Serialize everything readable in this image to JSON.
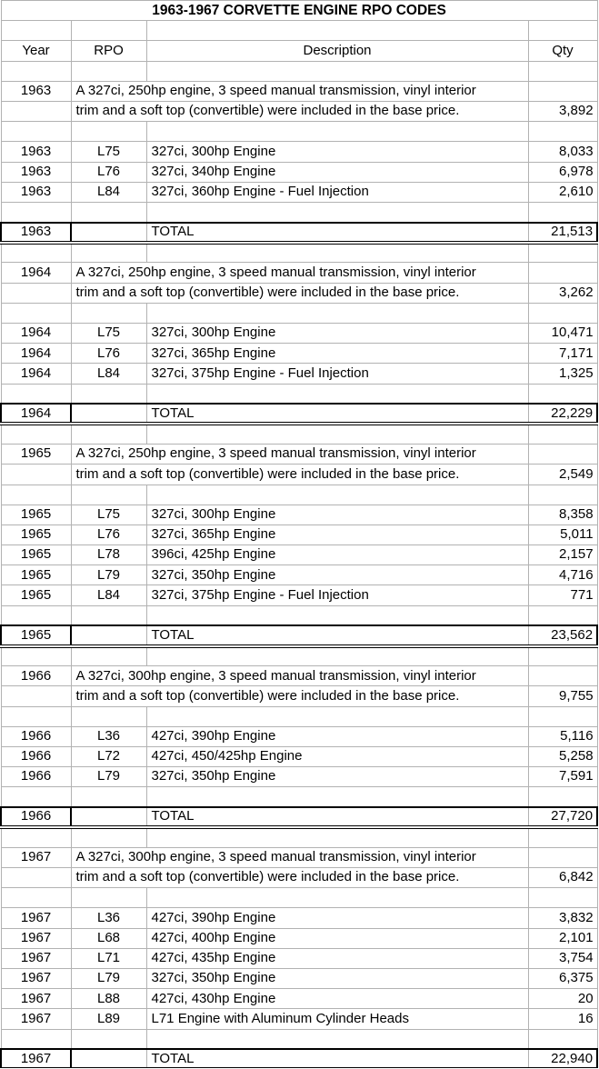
{
  "title": "1963-1967 CORVETTE ENGINE RPO CODES",
  "columns": [
    "Year",
    "RPO",
    "Description",
    "Qty"
  ],
  "colors": {
    "gridline": "#b2b2b2",
    "emphasis_border": "#000000",
    "text": "#000000",
    "background": "#ffffff"
  },
  "sections": [
    {
      "year": "1963",
      "note_line1": "A 327ci, 250hp engine, 3 speed manual transmission, vinyl interior",
      "note_line2": "trim and a soft top (convertible) were included in the base price.",
      "note_qty": "3,892",
      "rows": [
        {
          "year": "1963",
          "rpo": "L75",
          "description": "327ci, 300hp Engine",
          "qty": "8,033"
        },
        {
          "year": "1963",
          "rpo": "L76",
          "description": "327ci, 340hp Engine",
          "qty": "6,978"
        },
        {
          "year": "1963",
          "rpo": "L84",
          "description": "327ci, 360hp Engine - Fuel Injection",
          "qty": "2,610"
        }
      ],
      "total_label": "TOTAL",
      "total_qty": "21,513"
    },
    {
      "year": "1964",
      "note_line1": "A 327ci, 250hp engine, 3 speed manual transmission, vinyl interior",
      "note_line2": "trim and a soft top (convertible) were included in the base price.",
      "note_qty": "3,262",
      "rows": [
        {
          "year": "1964",
          "rpo": "L75",
          "description": "327ci, 300hp Engine",
          "qty": "10,471"
        },
        {
          "year": "1964",
          "rpo": "L76",
          "description": "327ci, 365hp Engine",
          "qty": "7,171"
        },
        {
          "year": "1964",
          "rpo": "L84",
          "description": "327ci, 375hp Engine - Fuel Injection",
          "qty": "1,325"
        }
      ],
      "total_label": "TOTAL",
      "total_qty": "22,229"
    },
    {
      "year": "1965",
      "note_line1": "A 327ci, 250hp engine, 3 speed manual transmission, vinyl interior",
      "note_line2": "trim and a soft top (convertible) were included in the base price.",
      "note_qty": "2,549",
      "rows": [
        {
          "year": "1965",
          "rpo": "L75",
          "description": "327ci, 300hp Engine",
          "qty": "8,358"
        },
        {
          "year": "1965",
          "rpo": "L76",
          "description": "327ci, 365hp Engine",
          "qty": "5,011"
        },
        {
          "year": "1965",
          "rpo": "L78",
          "description": "396ci, 425hp Engine",
          "qty": "2,157"
        },
        {
          "year": "1965",
          "rpo": "L79",
          "description": "327ci, 350hp Engine",
          "qty": "4,716"
        },
        {
          "year": "1965",
          "rpo": "L84",
          "description": "327ci, 375hp Engine - Fuel Injection",
          "qty": "771"
        }
      ],
      "total_label": "TOTAL",
      "total_qty": "23,562"
    },
    {
      "year": "1966",
      "note_line1": "A 327ci, 300hp engine, 3 speed manual transmission, vinyl interior",
      "note_line2": "trim and a soft top (convertible) were included in the base price.",
      "note_qty": "9,755",
      "rows": [
        {
          "year": "1966",
          "rpo": "L36",
          "description": "427ci, 390hp Engine",
          "qty": "5,116"
        },
        {
          "year": "1966",
          "rpo": "L72",
          "description": "427ci, 450/425hp Engine",
          "qty": "5,258"
        },
        {
          "year": "1966",
          "rpo": "L79",
          "description": "327ci, 350hp Engine",
          "qty": "7,591"
        }
      ],
      "total_label": "TOTAL",
      "total_qty": "27,720"
    },
    {
      "year": "1967",
      "note_line1": "A 327ci, 300hp engine, 3 speed manual transmission, vinyl interior",
      "note_line2": "trim and a soft top (convertible) were included in the base price.",
      "note_qty": "6,842",
      "rows": [
        {
          "year": "1967",
          "rpo": "L36",
          "description": "427ci, 390hp Engine",
          "qty": "3,832"
        },
        {
          "year": "1967",
          "rpo": "L68",
          "description": "427ci, 400hp Engine",
          "qty": "2,101"
        },
        {
          "year": "1967",
          "rpo": "L71",
          "description": "427ci, 435hp Engine",
          "qty": "3,754"
        },
        {
          "year": "1967",
          "rpo": "L79",
          "description": "327ci, 350hp Engine",
          "qty": "6,375"
        },
        {
          "year": "1967",
          "rpo": "L88",
          "description": "427ci, 430hp Engine",
          "qty": "20"
        },
        {
          "year": "1967",
          "rpo": "L89",
          "description": "L71 Engine with Aluminum Cylinder Heads",
          "qty": "16"
        }
      ],
      "total_label": "TOTAL",
      "total_qty": "22,940"
    }
  ]
}
